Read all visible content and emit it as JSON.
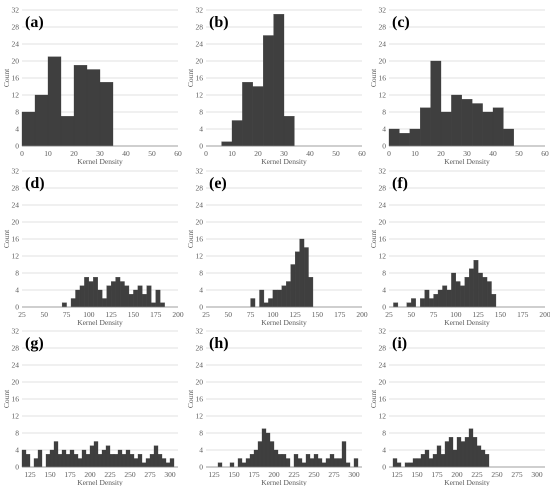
{
  "chart_data": [
    {
      "label": "(a)",
      "type": "bar",
      "xlabel": "Kernel Density",
      "ylabel": "Count",
      "xlim": [
        0,
        60
      ],
      "xticks": [
        0,
        10,
        20,
        30,
        40,
        50,
        60
      ],
      "ylim": [
        0,
        32
      ],
      "yticks": [
        0,
        4,
        8,
        12,
        16,
        20,
        24,
        28,
        32
      ],
      "bin_width": 5,
      "bins": [
        {
          "x": 0,
          "count": 8
        },
        {
          "x": 5,
          "count": 12
        },
        {
          "x": 10,
          "count": 21
        },
        {
          "x": 15,
          "count": 7
        },
        {
          "x": 20,
          "count": 19
        },
        {
          "x": 25,
          "count": 18
        },
        {
          "x": 30,
          "count": 15
        }
      ]
    },
    {
      "label": "(b)",
      "type": "bar",
      "xlabel": "Kernel Density",
      "ylabel": "Count",
      "xlim": [
        0,
        60
      ],
      "xticks": [
        0,
        10,
        20,
        30,
        40,
        50,
        60
      ],
      "ylim": [
        0,
        32
      ],
      "yticks": [
        0,
        4,
        8,
        12,
        16,
        20,
        24,
        28,
        32
      ],
      "bin_width": 4,
      "bins": [
        {
          "x": 6,
          "count": 1
        },
        {
          "x": 10,
          "count": 6
        },
        {
          "x": 14,
          "count": 15
        },
        {
          "x": 18,
          "count": 14
        },
        {
          "x": 22,
          "count": 26
        },
        {
          "x": 26,
          "count": 31
        },
        {
          "x": 30,
          "count": 7
        }
      ]
    },
    {
      "label": "(c)",
      "type": "bar",
      "xlabel": "Kernel Density",
      "ylabel": "Count",
      "xlim": [
        0,
        60
      ],
      "xticks": [
        0,
        10,
        20,
        30,
        40,
        50,
        60
      ],
      "ylim": [
        0,
        32
      ],
      "yticks": [
        0,
        4,
        8,
        12,
        16,
        20,
        24,
        28,
        32
      ],
      "bin_width": 4,
      "bins": [
        {
          "x": 0,
          "count": 4
        },
        {
          "x": 4,
          "count": 3
        },
        {
          "x": 8,
          "count": 4
        },
        {
          "x": 12,
          "count": 9
        },
        {
          "x": 16,
          "count": 20
        },
        {
          "x": 20,
          "count": 8
        },
        {
          "x": 24,
          "count": 12
        },
        {
          "x": 28,
          "count": 11
        },
        {
          "x": 32,
          "count": 10
        },
        {
          "x": 36,
          "count": 8
        },
        {
          "x": 40,
          "count": 9
        },
        {
          "x": 44,
          "count": 4
        }
      ]
    },
    {
      "label": "(d)",
      "type": "bar",
      "xlabel": "Kernel Density",
      "ylabel": "Count",
      "xlim": [
        25,
        200
      ],
      "xticks": [
        25,
        50,
        75,
        100,
        125,
        150,
        175,
        200
      ],
      "ylim": [
        0,
        32
      ],
      "yticks": [
        0,
        4,
        8,
        12,
        16,
        20,
        24,
        28,
        32
      ],
      "bin_width": 5,
      "bins": [
        {
          "x": 70,
          "count": 1
        },
        {
          "x": 80,
          "count": 2
        },
        {
          "x": 85,
          "count": 4
        },
        {
          "x": 90,
          "count": 5
        },
        {
          "x": 95,
          "count": 7
        },
        {
          "x": 100,
          "count": 6
        },
        {
          "x": 105,
          "count": 7
        },
        {
          "x": 110,
          "count": 4
        },
        {
          "x": 115,
          "count": 2
        },
        {
          "x": 120,
          "count": 5
        },
        {
          "x": 125,
          "count": 6
        },
        {
          "x": 130,
          "count": 7
        },
        {
          "x": 135,
          "count": 6
        },
        {
          "x": 140,
          "count": 5
        },
        {
          "x": 145,
          "count": 3
        },
        {
          "x": 150,
          "count": 4
        },
        {
          "x": 155,
          "count": 5
        },
        {
          "x": 160,
          "count": 3
        },
        {
          "x": 165,
          "count": 5
        },
        {
          "x": 170,
          "count": 1
        },
        {
          "x": 175,
          "count": 4
        },
        {
          "x": 180,
          "count": 1
        }
      ]
    },
    {
      "label": "(e)",
      "type": "bar",
      "xlabel": "Kernel Density",
      "ylabel": "Count",
      "xlim": [
        25,
        200
      ],
      "xticks": [
        25,
        50,
        75,
        100,
        125,
        150,
        175,
        200
      ],
      "ylim": [
        0,
        32
      ],
      "yticks": [
        0,
        4,
        8,
        12,
        16,
        20,
        24,
        28,
        32
      ],
      "bin_width": 5,
      "bins": [
        {
          "x": 75,
          "count": 2
        },
        {
          "x": 85,
          "count": 4
        },
        {
          "x": 90,
          "count": 1
        },
        {
          "x": 95,
          "count": 2
        },
        {
          "x": 100,
          "count": 4
        },
        {
          "x": 105,
          "count": 4
        },
        {
          "x": 110,
          "count": 5
        },
        {
          "x": 115,
          "count": 6
        },
        {
          "x": 120,
          "count": 10
        },
        {
          "x": 125,
          "count": 13
        },
        {
          "x": 130,
          "count": 16
        },
        {
          "x": 135,
          "count": 14
        },
        {
          "x": 140,
          "count": 7
        }
      ]
    },
    {
      "label": "(f)",
      "type": "bar",
      "xlabel": "Kernel Density",
      "ylabel": "Count",
      "xlim": [
        25,
        200
      ],
      "xticks": [
        25,
        50,
        75,
        100,
        125,
        150,
        175,
        200
      ],
      "ylim": [
        0,
        32
      ],
      "yticks": [
        0,
        4,
        8,
        12,
        16,
        20,
        24,
        28,
        32
      ],
      "bin_width": 5,
      "bins": [
        {
          "x": 30,
          "count": 1
        },
        {
          "x": 45,
          "count": 1
        },
        {
          "x": 50,
          "count": 2
        },
        {
          "x": 60,
          "count": 2
        },
        {
          "x": 65,
          "count": 4
        },
        {
          "x": 70,
          "count": 2
        },
        {
          "x": 75,
          "count": 3
        },
        {
          "x": 80,
          "count": 4
        },
        {
          "x": 85,
          "count": 5
        },
        {
          "x": 90,
          "count": 4
        },
        {
          "x": 95,
          "count": 8
        },
        {
          "x": 100,
          "count": 6
        },
        {
          "x": 105,
          "count": 5
        },
        {
          "x": 110,
          "count": 7
        },
        {
          "x": 115,
          "count": 9
        },
        {
          "x": 120,
          "count": 11
        },
        {
          "x": 125,
          "count": 8
        },
        {
          "x": 130,
          "count": 7
        },
        {
          "x": 135,
          "count": 6
        },
        {
          "x": 140,
          "count": 3
        }
      ]
    },
    {
      "label": "(g)",
      "type": "bar",
      "xlabel": "Kernel Density",
      "ylabel": "Count",
      "xlim": [
        115,
        310
      ],
      "xticks": [
        125,
        150,
        175,
        200,
        225,
        250,
        275,
        300
      ],
      "ylim": [
        0,
        32
      ],
      "yticks": [
        0,
        4,
        8,
        12,
        16,
        20,
        24,
        28,
        32
      ],
      "bin_width": 5,
      "bins": [
        {
          "x": 115,
          "count": 4
        },
        {
          "x": 120,
          "count": 3
        },
        {
          "x": 130,
          "count": 2
        },
        {
          "x": 135,
          "count": 4
        },
        {
          "x": 145,
          "count": 3
        },
        {
          "x": 150,
          "count": 4
        },
        {
          "x": 155,
          "count": 6
        },
        {
          "x": 160,
          "count": 3
        },
        {
          "x": 165,
          "count": 4
        },
        {
          "x": 170,
          "count": 3
        },
        {
          "x": 175,
          "count": 4
        },
        {
          "x": 180,
          "count": 3
        },
        {
          "x": 185,
          "count": 2
        },
        {
          "x": 190,
          "count": 4
        },
        {
          "x": 195,
          "count": 3
        },
        {
          "x": 200,
          "count": 5
        },
        {
          "x": 205,
          "count": 6
        },
        {
          "x": 210,
          "count": 3
        },
        {
          "x": 215,
          "count": 4
        },
        {
          "x": 220,
          "count": 5
        },
        {
          "x": 225,
          "count": 3
        },
        {
          "x": 230,
          "count": 3
        },
        {
          "x": 235,
          "count": 4
        },
        {
          "x": 240,
          "count": 3
        },
        {
          "x": 245,
          "count": 4
        },
        {
          "x": 250,
          "count": 3
        },
        {
          "x": 255,
          "count": 2
        },
        {
          "x": 260,
          "count": 3
        },
        {
          "x": 265,
          "count": 1
        },
        {
          "x": 270,
          "count": 2
        },
        {
          "x": 275,
          "count": 3
        },
        {
          "x": 280,
          "count": 5
        },
        {
          "x": 285,
          "count": 3
        },
        {
          "x": 290,
          "count": 2
        },
        {
          "x": 295,
          "count": 1
        },
        {
          "x": 300,
          "count": 2
        }
      ]
    },
    {
      "label": "(h)",
      "type": "bar",
      "xlabel": "Kernel Density",
      "ylabel": "Count",
      "xlim": [
        115,
        310
      ],
      "xticks": [
        125,
        150,
        175,
        200,
        225,
        250,
        275,
        300
      ],
      "ylim": [
        0,
        32
      ],
      "yticks": [
        0,
        4,
        8,
        12,
        16,
        20,
        24,
        28,
        32
      ],
      "bin_width": 5,
      "bins": [
        {
          "x": 130,
          "count": 1
        },
        {
          "x": 145,
          "count": 1
        },
        {
          "x": 155,
          "count": 2
        },
        {
          "x": 160,
          "count": 1
        },
        {
          "x": 165,
          "count": 2
        },
        {
          "x": 170,
          "count": 3
        },
        {
          "x": 175,
          "count": 4
        },
        {
          "x": 180,
          "count": 6
        },
        {
          "x": 185,
          "count": 9
        },
        {
          "x": 190,
          "count": 8
        },
        {
          "x": 195,
          "count": 6
        },
        {
          "x": 200,
          "count": 4
        },
        {
          "x": 205,
          "count": 3
        },
        {
          "x": 210,
          "count": 3
        },
        {
          "x": 215,
          "count": 2
        },
        {
          "x": 225,
          "count": 3
        },
        {
          "x": 230,
          "count": 2
        },
        {
          "x": 235,
          "count": 1
        },
        {
          "x": 240,
          "count": 3
        },
        {
          "x": 245,
          "count": 2
        },
        {
          "x": 250,
          "count": 3
        },
        {
          "x": 255,
          "count": 2
        },
        {
          "x": 260,
          "count": 1
        },
        {
          "x": 265,
          "count": 2
        },
        {
          "x": 270,
          "count": 3
        },
        {
          "x": 275,
          "count": 2
        },
        {
          "x": 280,
          "count": 2
        },
        {
          "x": 285,
          "count": 6
        },
        {
          "x": 290,
          "count": 1
        },
        {
          "x": 300,
          "count": 2
        }
      ]
    },
    {
      "label": "(i)",
      "type": "bar",
      "xlabel": "Kernel Density",
      "ylabel": "Count",
      "xlim": [
        115,
        310
      ],
      "xticks": [
        125,
        150,
        175,
        200,
        225,
        250,
        275,
        300
      ],
      "ylim": [
        0,
        32
      ],
      "yticks": [
        0,
        4,
        8,
        12,
        16,
        20,
        24,
        28,
        32
      ],
      "bin_width": 5,
      "bins": [
        {
          "x": 120,
          "count": 2
        },
        {
          "x": 125,
          "count": 1
        },
        {
          "x": 135,
          "count": 1
        },
        {
          "x": 140,
          "count": 1
        },
        {
          "x": 145,
          "count": 2
        },
        {
          "x": 150,
          "count": 2
        },
        {
          "x": 155,
          "count": 3
        },
        {
          "x": 160,
          "count": 4
        },
        {
          "x": 165,
          "count": 2
        },
        {
          "x": 170,
          "count": 3
        },
        {
          "x": 175,
          "count": 5
        },
        {
          "x": 180,
          "count": 3
        },
        {
          "x": 185,
          "count": 6
        },
        {
          "x": 190,
          "count": 7
        },
        {
          "x": 195,
          "count": 4
        },
        {
          "x": 200,
          "count": 7
        },
        {
          "x": 205,
          "count": 6
        },
        {
          "x": 210,
          "count": 7
        },
        {
          "x": 215,
          "count": 9
        },
        {
          "x": 220,
          "count": 7
        },
        {
          "x": 225,
          "count": 5
        },
        {
          "x": 230,
          "count": 4
        },
        {
          "x": 235,
          "count": 3
        }
      ]
    }
  ],
  "colors": {
    "bar": "#3f3f3f",
    "grid": "#d9d9d9",
    "axis": "#7f7f7f",
    "text": "#595959",
    "panel_label": "#000000"
  }
}
